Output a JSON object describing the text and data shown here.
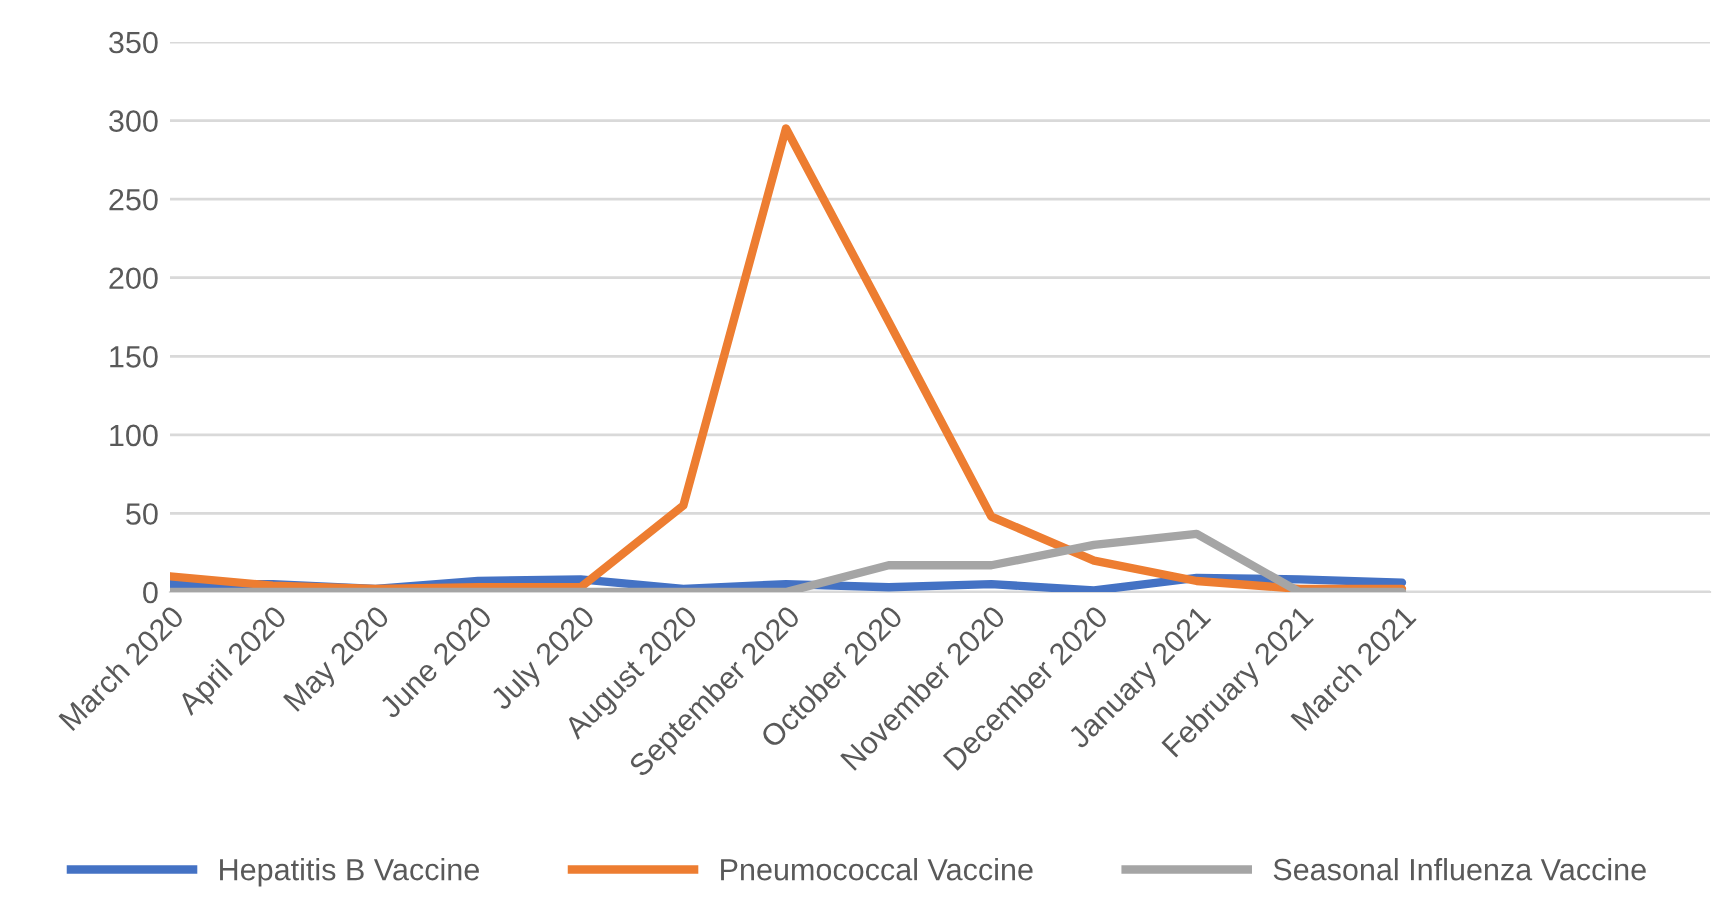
{
  "chart_data": {
    "type": "line",
    "categories": [
      "March 2020",
      "April 2020",
      "May 2020",
      "June 2020",
      "July 2020",
      "August 2020",
      "September 2020",
      "October 2020",
      "November 2020",
      "December 2020",
      "January 2021",
      "February 2021",
      "March 2021",
      null,
      null,
      null
    ],
    "series": [
      {
        "name": "Hepatitis B Vaccine",
        "color": "#4472c4",
        "values": [
          5,
          5,
          2,
          7,
          8,
          2,
          5,
          3,
          5,
          1,
          9,
          8,
          6,
          null,
          null,
          null
        ]
      },
      {
        "name": "Pneumococcal Vaccine",
        "color": "#ed7d31",
        "values": [
          10,
          4,
          2,
          3,
          3,
          55,
          295,
          172,
          48,
          20,
          7,
          2,
          2,
          null,
          null,
          null
        ]
      },
      {
        "name": "Seasonal Influenza Vaccine",
        "color": "#a5a5a5",
        "values": [
          0,
          0,
          0,
          0,
          0,
          0,
          0,
          17,
          17,
          30,
          37,
          0,
          0,
          null,
          null,
          null
        ]
      }
    ],
    "ylim": [
      0,
      350
    ],
    "yticks": [
      0,
      50,
      100,
      150,
      200,
      250,
      300,
      350
    ],
    "grid": "y",
    "legend": "bottom",
    "marker": "none",
    "line_style": "solid"
  }
}
